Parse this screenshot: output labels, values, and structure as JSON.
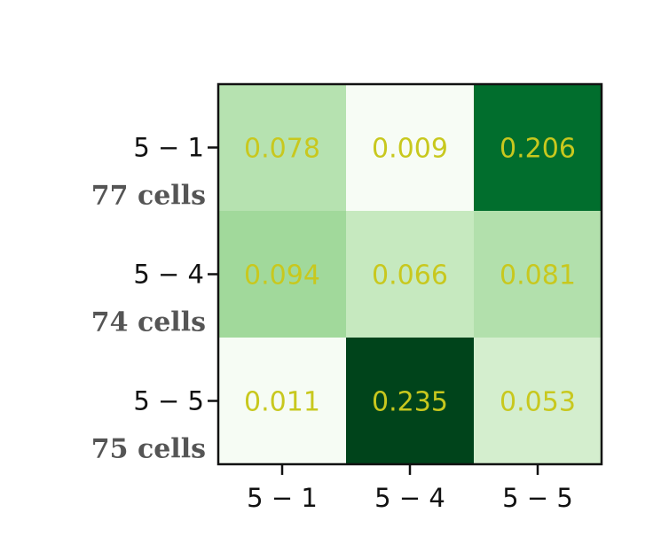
{
  "chart_data": {
    "type": "heatmap",
    "title": "",
    "xlabel": "",
    "ylabel": "",
    "row_labels": [
      "5 − 1",
      "5 − 4",
      "5 − 5"
    ],
    "row_counts": [
      "77 cells",
      "74 cells",
      "75 cells"
    ],
    "col_labels": [
      "5 − 1",
      "5 − 4",
      "5 − 5"
    ],
    "values": [
      [
        "0.078",
        "0.009",
        "0.206"
      ],
      [
        "0.094",
        "0.066",
        "0.081"
      ],
      [
        "0.011",
        "0.235",
        "0.053"
      ]
    ],
    "colormap": "Greens",
    "value_text_color": "#c8c81e",
    "colorbar": false
  }
}
